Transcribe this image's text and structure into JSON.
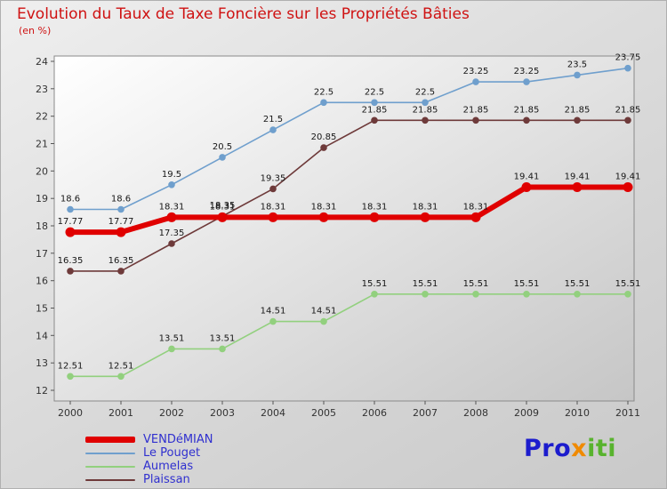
{
  "title": "Evolution du Taux de Taxe Foncière sur les Propriétés Bâties",
  "subtitle": "(en %)",
  "colors": {
    "title": "#cf1212",
    "legend_text": "#3030cf",
    "plot_border": "#8a8a8a",
    "axis_tick": "#555555",
    "data_label": "#161616"
  },
  "chart_data": {
    "type": "line",
    "x": [
      2000,
      2001,
      2002,
      2003,
      2004,
      2005,
      2006,
      2007,
      2008,
      2009,
      2010,
      2011
    ],
    "series": [
      {
        "name": "VENDéMIAN",
        "color": "#e00000",
        "width": 6,
        "values": [
          17.77,
          17.77,
          18.31,
          18.31,
          18.31,
          18.31,
          18.31,
          18.31,
          18.31,
          19.41,
          19.41,
          19.41
        ]
      },
      {
        "name": "Le Pouget",
        "color": "#6f9fcd",
        "width": 1.6,
        "values": [
          18.6,
          18.6,
          19.5,
          20.5,
          21.5,
          22.5,
          22.5,
          22.5,
          23.25,
          23.25,
          23.5,
          23.75
        ]
      },
      {
        "name": "Aumelas",
        "color": "#92d07e",
        "width": 1.6,
        "values": [
          12.51,
          12.51,
          13.51,
          13.51,
          14.51,
          14.51,
          15.51,
          15.51,
          15.51,
          15.51,
          15.51,
          15.51
        ]
      },
      {
        "name": "Plaissan",
        "color": "#6e3a3a",
        "width": 1.6,
        "values": [
          16.35,
          16.35,
          17.35,
          18.35,
          19.35,
          20.85,
          21.85,
          21.85,
          21.85,
          21.85,
          21.85,
          21.85
        ]
      }
    ],
    "ylim": [
      12,
      24
    ],
    "yticks": [
      12,
      13,
      14,
      15,
      16,
      17,
      18,
      19,
      20,
      21,
      22,
      23,
      24
    ],
    "grid": false,
    "legend_position": "bottom-left",
    "data_labels": true
  },
  "logo": {
    "segments": [
      {
        "text": "Pro",
        "color": "#1c1ccd"
      },
      {
        "text": "x",
        "color": "#f08a00"
      },
      {
        "text": "iti",
        "color": "#58b32e"
      }
    ]
  }
}
